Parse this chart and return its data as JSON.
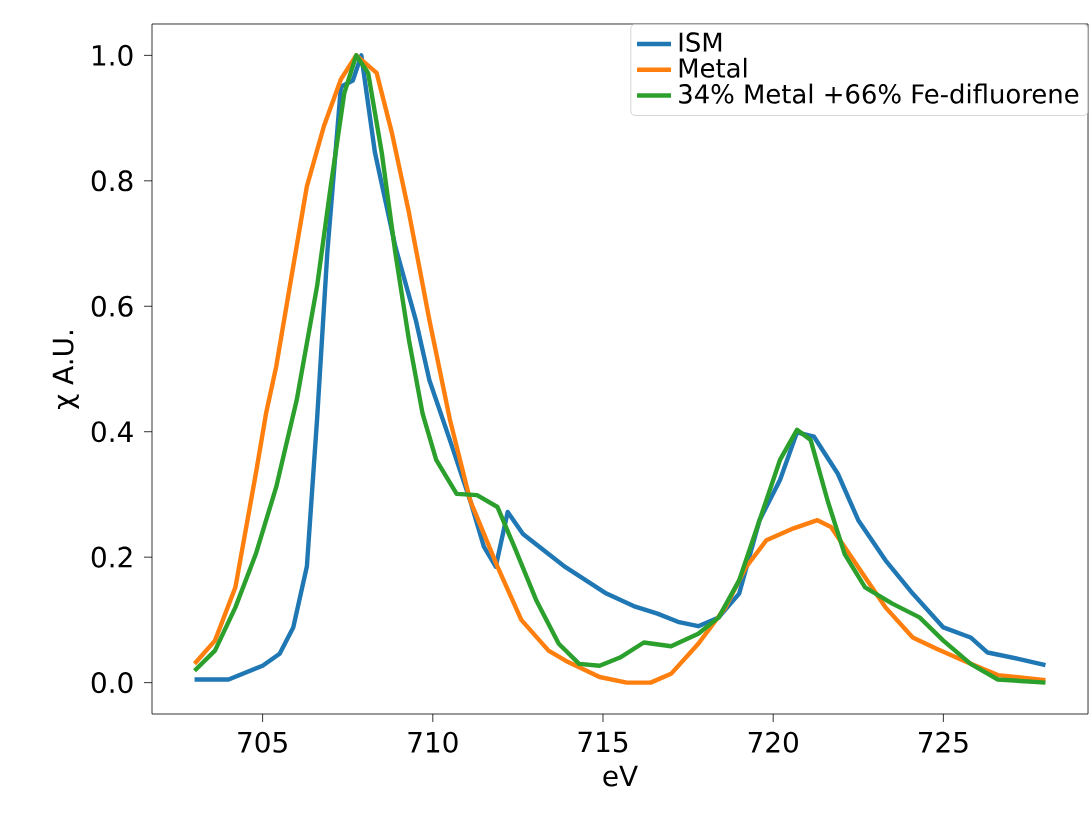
{
  "chart_data": {
    "type": "line",
    "xlabel": "eV",
    "ylabel": "χ A.U.",
    "xlim": [
      701.75,
      729.25
    ],
    "ylim": [
      -0.05,
      1.05
    ],
    "xticks": [
      705,
      710,
      715,
      720,
      725
    ],
    "yticks": [
      {
        "value": 0,
        "label": "0.0"
      },
      {
        "value": 0.2,
        "label": "0.2"
      },
      {
        "value": 0.4,
        "label": "0.4"
      },
      {
        "value": 0.6,
        "label": "0.6"
      },
      {
        "value": 0.8,
        "label": "0.8"
      },
      {
        "value": 1.0,
        "label": "1.0"
      }
    ],
    "legend": "top right",
    "grid": false,
    "line_style": "solid",
    "series": [
      {
        "name": "ISM",
        "color": "#1f77b4",
        "x": [
          703.0,
          704.0,
          705.0,
          705.5,
          705.9,
          706.3,
          706.6,
          706.9,
          707.3,
          707.65,
          707.9,
          708.3,
          708.9,
          709.5,
          709.9,
          710.5,
          711.1,
          711.5,
          711.85,
          712.2,
          712.65,
          713.4,
          713.9,
          715.1,
          715.9,
          716.6,
          717.2,
          717.8,
          718.4,
          719.0,
          719.6,
          720.2,
          720.7,
          721.2,
          721.9,
          722.5,
          723.3,
          724.1,
          725.0,
          725.8,
          726.3,
          727.2,
          728.0
        ],
        "values": [
          0.005,
          0.005,
          0.027,
          0.046,
          0.088,
          0.185,
          0.42,
          0.685,
          0.95,
          0.96,
          1.0,
          0.845,
          0.695,
          0.578,
          0.482,
          0.387,
          0.29,
          0.217,
          0.185,
          0.272,
          0.237,
          0.205,
          0.184,
          0.142,
          0.122,
          0.11,
          0.097,
          0.09,
          0.104,
          0.142,
          0.259,
          0.323,
          0.399,
          0.392,
          0.333,
          0.259,
          0.195,
          0.142,
          0.088,
          0.072,
          0.048,
          0.038,
          0.028
        ]
      },
      {
        "name": "Metal",
        "color": "#ff7f0e",
        "x": [
          703.0,
          703.6,
          704.2,
          704.8,
          705.1,
          705.4,
          705.8,
          706.3,
          706.8,
          707.3,
          707.75,
          708.35,
          708.8,
          709.3,
          709.9,
          710.5,
          711.1,
          711.9,
          712.6,
          713.4,
          713.9,
          714.9,
          715.7,
          716.4,
          717.0,
          717.8,
          718.6,
          719.2,
          719.8,
          720.6,
          721.3,
          721.7,
          722.5,
          723.3,
          724.1,
          724.8,
          725.6,
          726.6,
          728.0
        ],
        "values": [
          0.03,
          0.067,
          0.152,
          0.333,
          0.429,
          0.504,
          0.632,
          0.791,
          0.887,
          0.962,
          1.0,
          0.972,
          0.876,
          0.749,
          0.578,
          0.42,
          0.29,
          0.185,
          0.1,
          0.051,
          0.035,
          0.009,
          0.0,
          0.0,
          0.014,
          0.062,
          0.12,
          0.184,
          0.227,
          0.246,
          0.259,
          0.248,
          0.184,
          0.12,
          0.072,
          0.054,
          0.035,
          0.012,
          0.004
        ]
      },
      {
        "name": "34% Metal +66% Fe-difluorene",
        "color": "#2ca02c",
        "x": [
          703.0,
          703.6,
          704.2,
          704.8,
          705.4,
          706.0,
          706.6,
          707.0,
          707.4,
          707.75,
          708.1,
          708.5,
          708.9,
          709.3,
          709.7,
          710.1,
          710.7,
          711.3,
          711.9,
          712.4,
          713.05,
          713.7,
          714.3,
          714.9,
          715.5,
          716.2,
          717.0,
          717.8,
          718.4,
          719.0,
          719.6,
          720.2,
          720.7,
          721.1,
          721.6,
          722.1,
          722.7,
          723.5,
          724.3,
          725.0,
          725.8,
          726.6,
          728.0
        ],
        "values": [
          0.019,
          0.051,
          0.12,
          0.205,
          0.312,
          0.45,
          0.632,
          0.791,
          0.94,
          1.0,
          0.972,
          0.845,
          0.685,
          0.546,
          0.429,
          0.355,
          0.301,
          0.299,
          0.28,
          0.216,
          0.13,
          0.062,
          0.03,
          0.027,
          0.04,
          0.064,
          0.058,
          0.078,
          0.104,
          0.163,
          0.259,
          0.355,
          0.403,
          0.387,
          0.29,
          0.205,
          0.152,
          0.126,
          0.104,
          0.067,
          0.03,
          0.005,
          0.0
        ]
      }
    ]
  }
}
